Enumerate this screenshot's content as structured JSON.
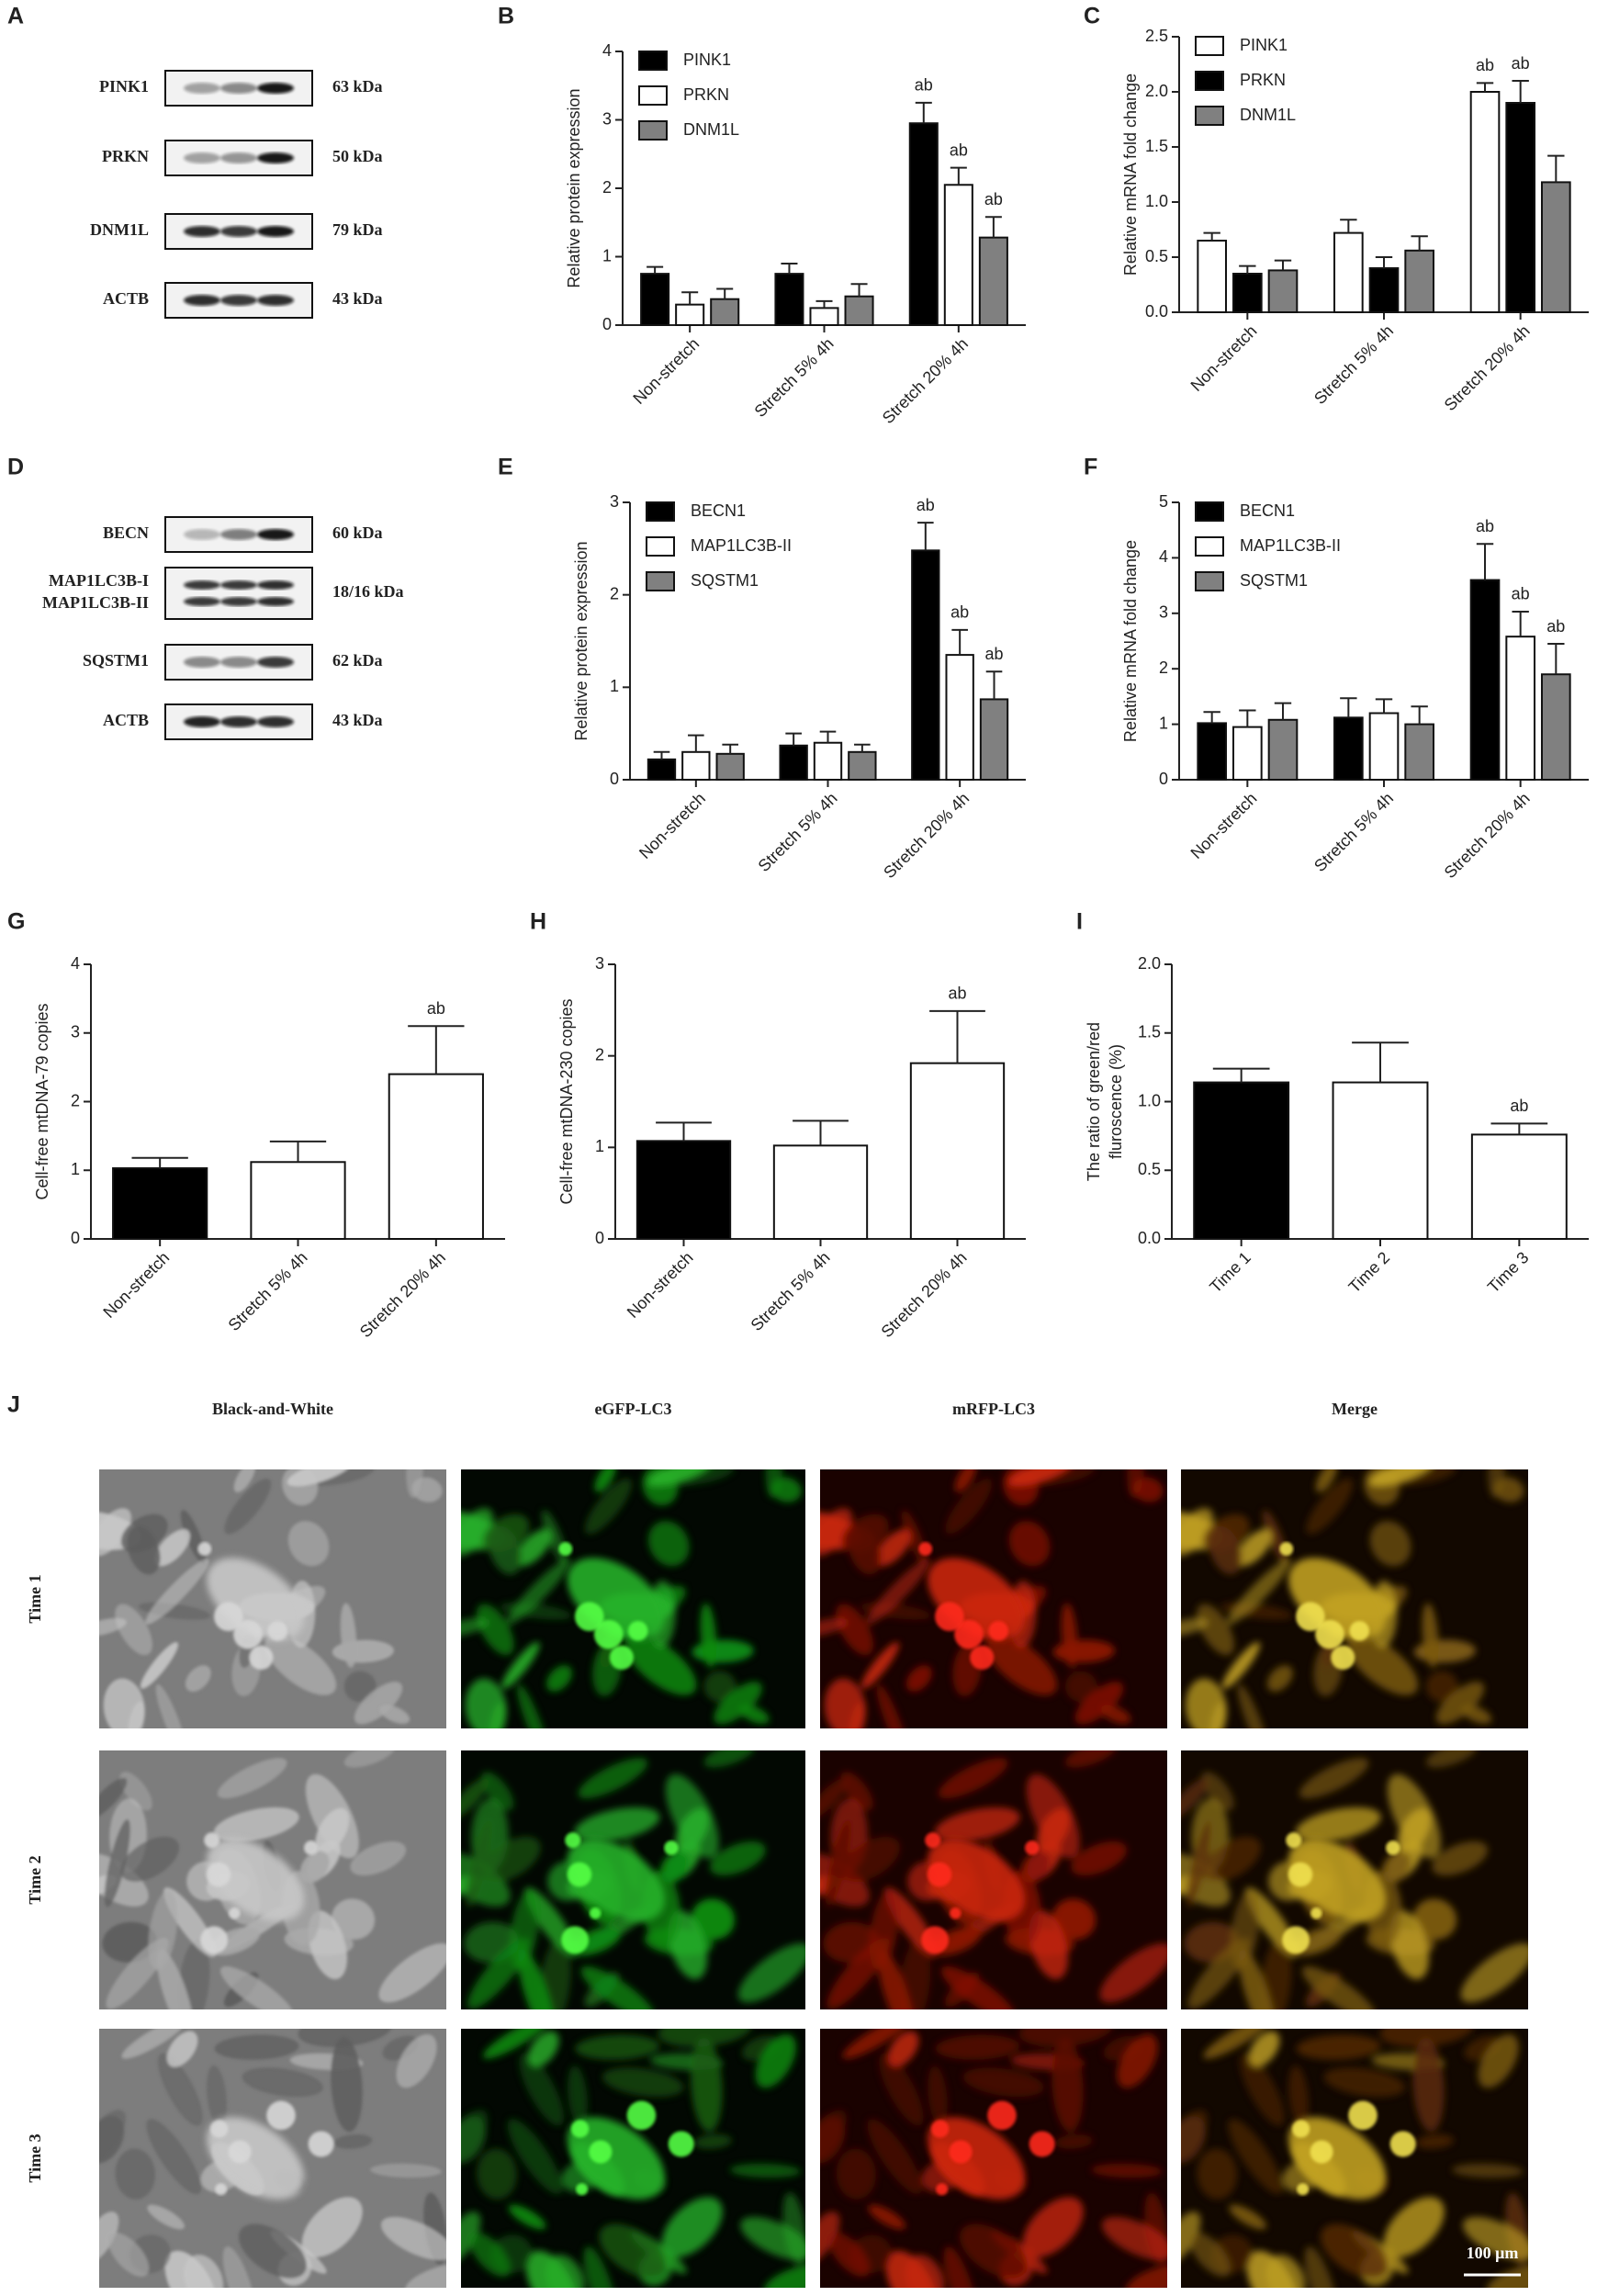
{
  "blots": [
    {
      "panel": "A",
      "rows": [
        {
          "protein": "PINK1",
          "size": "63 kDa"
        },
        {
          "protein": "PRKN",
          "size": "50 kDa"
        },
        {
          "protein": "DNM1L",
          "size": "79 kDa"
        },
        {
          "protein": "ACTB",
          "size": "43 kDa"
        }
      ]
    },
    {
      "panel": "D",
      "rows": [
        {
          "protein": "BECN",
          "size": "60 kDa"
        },
        {
          "protein": [
            "MAP1LC3B-I",
            "MAP1LC3B-II"
          ],
          "size": "18/16 kDa"
        },
        {
          "protein": "SQSTM1",
          "size": "62 kDa"
        },
        {
          "protein": "ACTB",
          "size": "43 kDa"
        }
      ]
    }
  ],
  "chart_data": [
    {
      "type": "bar",
      "panel": "B",
      "ylabel": "Relative protein expression",
      "legend": "upper left",
      "categories": [
        "Non-stretch",
        "Stretch 5% 4h",
        "Stretch 20% 4h"
      ],
      "ylim": [
        0,
        4
      ],
      "yticks": [
        0,
        1,
        2,
        3,
        4
      ],
      "series": [
        {
          "name": "PINK1",
          "color": "#000000",
          "values": [
            0.75,
            0.75,
            2.95
          ],
          "errors": [
            0.1,
            0.15,
            0.3
          ],
          "annotations": [
            null,
            null,
            "ab"
          ]
        },
        {
          "name": "PRKN",
          "color": "#ffffff",
          "values": [
            0.3,
            0.25,
            2.05
          ],
          "errors": [
            0.18,
            0.1,
            0.25
          ],
          "annotations": [
            null,
            null,
            "ab"
          ]
        },
        {
          "name": "DNM1L",
          "color": "#808080",
          "values": [
            0.38,
            0.42,
            1.28
          ],
          "errors": [
            0.15,
            0.18,
            0.3
          ],
          "annotations": [
            null,
            null,
            "ab"
          ]
        }
      ]
    },
    {
      "type": "bar",
      "panel": "C",
      "ylabel": "Relative mRNA fold change",
      "legend": "upper left",
      "categories": [
        "Non-stretch",
        "Stretch 5% 4h",
        "Stretch 20% 4h"
      ],
      "ylim": [
        0,
        2.5
      ],
      "yticks": [
        {
          "value": 0,
          "label": "0.0"
        },
        0.5,
        {
          "value": 1,
          "label": "1.0"
        },
        1.5,
        {
          "value": 2,
          "label": "2.0"
        },
        2.5
      ],
      "series": [
        {
          "name": "PINK1",
          "color": "#ffffff",
          "values": [
            0.65,
            0.72,
            2.0
          ],
          "errors": [
            0.07,
            0.12,
            0.08
          ],
          "annotations": [
            null,
            null,
            "ab"
          ]
        },
        {
          "name": "PRKN",
          "color": "#000000",
          "values": [
            0.35,
            0.4,
            1.9
          ],
          "errors": [
            0.07,
            0.1,
            0.2
          ],
          "annotations": [
            null,
            null,
            "ab"
          ]
        },
        {
          "name": "DNM1L",
          "color": "#808080",
          "values": [
            0.38,
            0.56,
            1.18
          ],
          "errors": [
            0.09,
            0.13,
            0.24
          ],
          "annotations": [
            null,
            null,
            null
          ]
        }
      ]
    },
    {
      "type": "bar",
      "panel": "E",
      "ylabel": "Relative protein expression",
      "legend": "upper left",
      "categories": [
        "Non-stretch",
        "Stretch 5% 4h",
        "Stretch 20% 4h"
      ],
      "ylim": [
        0,
        3
      ],
      "yticks": [
        0,
        1,
        2,
        3
      ],
      "series": [
        {
          "name": "BECN1",
          "color": "#000000",
          "values": [
            0.22,
            0.37,
            2.48
          ],
          "errors": [
            0.08,
            0.13,
            0.3
          ],
          "annotations": [
            null,
            null,
            "ab"
          ]
        },
        {
          "name": "MAP1LC3B-II",
          "color": "#ffffff",
          "values": [
            0.3,
            0.4,
            1.35
          ],
          "errors": [
            0.18,
            0.12,
            0.27
          ],
          "annotations": [
            null,
            null,
            "ab"
          ]
        },
        {
          "name": "SQSTM1",
          "color": "#808080",
          "values": [
            0.28,
            0.3,
            0.87
          ],
          "errors": [
            0.1,
            0.08,
            0.3
          ],
          "annotations": [
            null,
            null,
            "ab"
          ]
        }
      ]
    },
    {
      "type": "bar",
      "panel": "F",
      "ylabel": "Relative mRNA fold change",
      "legend": "upper left",
      "categories": [
        "Non-stretch",
        "Stretch 5% 4h",
        "Stretch 20% 4h"
      ],
      "ylim": [
        0,
        5
      ],
      "yticks": [
        0,
        1,
        2,
        3,
        4,
        5
      ],
      "series": [
        {
          "name": "BECN1",
          "color": "#000000",
          "values": [
            1.02,
            1.12,
            3.6
          ],
          "errors": [
            0.2,
            0.35,
            0.65
          ],
          "annotations": [
            null,
            null,
            "ab"
          ]
        },
        {
          "name": "MAP1LC3B-II",
          "color": "#ffffff",
          "values": [
            0.95,
            1.2,
            2.58
          ],
          "errors": [
            0.3,
            0.25,
            0.45
          ],
          "annotations": [
            null,
            null,
            "ab"
          ]
        },
        {
          "name": "SQSTM1",
          "color": "#808080",
          "values": [
            1.08,
            1.0,
            1.9
          ],
          "errors": [
            0.3,
            0.32,
            0.55
          ],
          "annotations": [
            null,
            null,
            "ab"
          ]
        }
      ]
    },
    {
      "type": "bar",
      "panel": "G",
      "ylabel": "Cell-free mtDNA-79 copies",
      "categories": [
        "Non-stretch",
        "Stretch 5% 4h",
        "Stretch 20% 4h"
      ],
      "ylim": [
        0,
        4
      ],
      "yticks": [
        0,
        1,
        2,
        3,
        4
      ],
      "colors": [
        "#000000",
        "#ffffff",
        "#ffffff"
      ],
      "values": [
        1.03,
        1.12,
        2.4
      ],
      "errors": [
        0.15,
        0.3,
        0.7
      ],
      "annotations": [
        null,
        null,
        "ab"
      ]
    },
    {
      "type": "bar",
      "panel": "H",
      "ylabel": "Cell-free mtDNA-230 copies",
      "categories": [
        "Non-stretch",
        "Stretch 5% 4h",
        "Stretch 20% 4h"
      ],
      "ylim": [
        0,
        3
      ],
      "yticks": [
        0,
        1,
        2,
        3
      ],
      "colors": [
        "#000000",
        "#ffffff",
        "#ffffff"
      ],
      "values": [
        1.07,
        1.02,
        1.92
      ],
      "errors": [
        0.2,
        0.27,
        0.57
      ],
      "annotations": [
        null,
        null,
        "ab"
      ]
    },
    {
      "type": "bar",
      "panel": "I",
      "ylabel": [
        "The ratio of green/red",
        "fluroscence (%)"
      ],
      "categories": [
        "Time 1",
        "Time 2",
        "Time 3"
      ],
      "ylim": [
        0,
        2
      ],
      "yticks": [
        {
          "value": 0,
          "label": "0.0"
        },
        0.5,
        {
          "value": 1,
          "label": "1.0"
        },
        1.5,
        {
          "value": 2,
          "label": "2.0"
        }
      ],
      "colors": [
        "#000000",
        "#ffffff",
        "#ffffff"
      ],
      "values": [
        1.14,
        1.14,
        0.76
      ],
      "errors": [
        0.1,
        0.29,
        0.08
      ],
      "annotations": [
        null,
        null,
        "ab"
      ]
    }
  ],
  "imaging": {
    "panel": "J",
    "columns": [
      "Black-and-White",
      "eGFP-LC3",
      "mRFP-LC3",
      "Merge"
    ],
    "rows": [
      "Time 1",
      "Time 2",
      "Time 3"
    ],
    "scale_bar": "100 μm"
  }
}
